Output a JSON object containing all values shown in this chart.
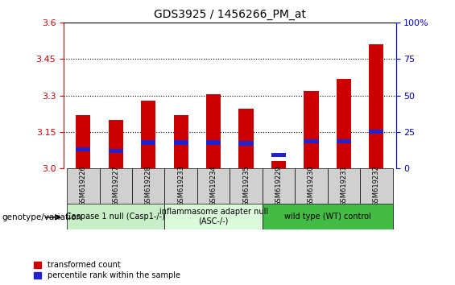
{
  "title": "GDS3925 / 1456266_PM_at",
  "samples": [
    "GSM619226",
    "GSM619227",
    "GSM619228",
    "GSM619233",
    "GSM619234",
    "GSM619235",
    "GSM619229",
    "GSM619230",
    "GSM619231",
    "GSM619232"
  ],
  "red_values": [
    3.22,
    3.2,
    3.28,
    3.22,
    3.305,
    3.245,
    3.03,
    3.32,
    3.37,
    3.51
  ],
  "blue_values": [
    3.068,
    3.062,
    3.097,
    3.097,
    3.097,
    3.093,
    3.045,
    3.102,
    3.102,
    3.142
  ],
  "blue_bar_height": 0.018,
  "ymin": 3.0,
  "ymax": 3.6,
  "yticks": [
    3.0,
    3.15,
    3.3,
    3.45,
    3.6
  ],
  "y2ticks": [
    0,
    25,
    50,
    75,
    100
  ],
  "groups": [
    {
      "label": "Caspase 1 null (Casp1-/-)",
      "start": 0,
      "end": 3,
      "color": "#c8eec8"
    },
    {
      "label": "inflammasome adapter null\n(ASC-/-)",
      "start": 3,
      "end": 6,
      "color": "#dafada"
    },
    {
      "label": "wild type (WT) control",
      "start": 6,
      "end": 10,
      "color": "#44bb44"
    }
  ],
  "bar_width": 0.45,
  "red_color": "#cc0000",
  "blue_color": "#2222cc",
  "legend_label_red": "transformed count",
  "legend_label_blue": "percentile rank within the sample",
  "xlabel": "genotype/variation",
  "left_axis_color": "#cc0000",
  "right_axis_color": "#0000cc",
  "grid_yvals": [
    3.15,
    3.3,
    3.45
  ],
  "label_fontsize": 7,
  "tick_fontsize": 8
}
